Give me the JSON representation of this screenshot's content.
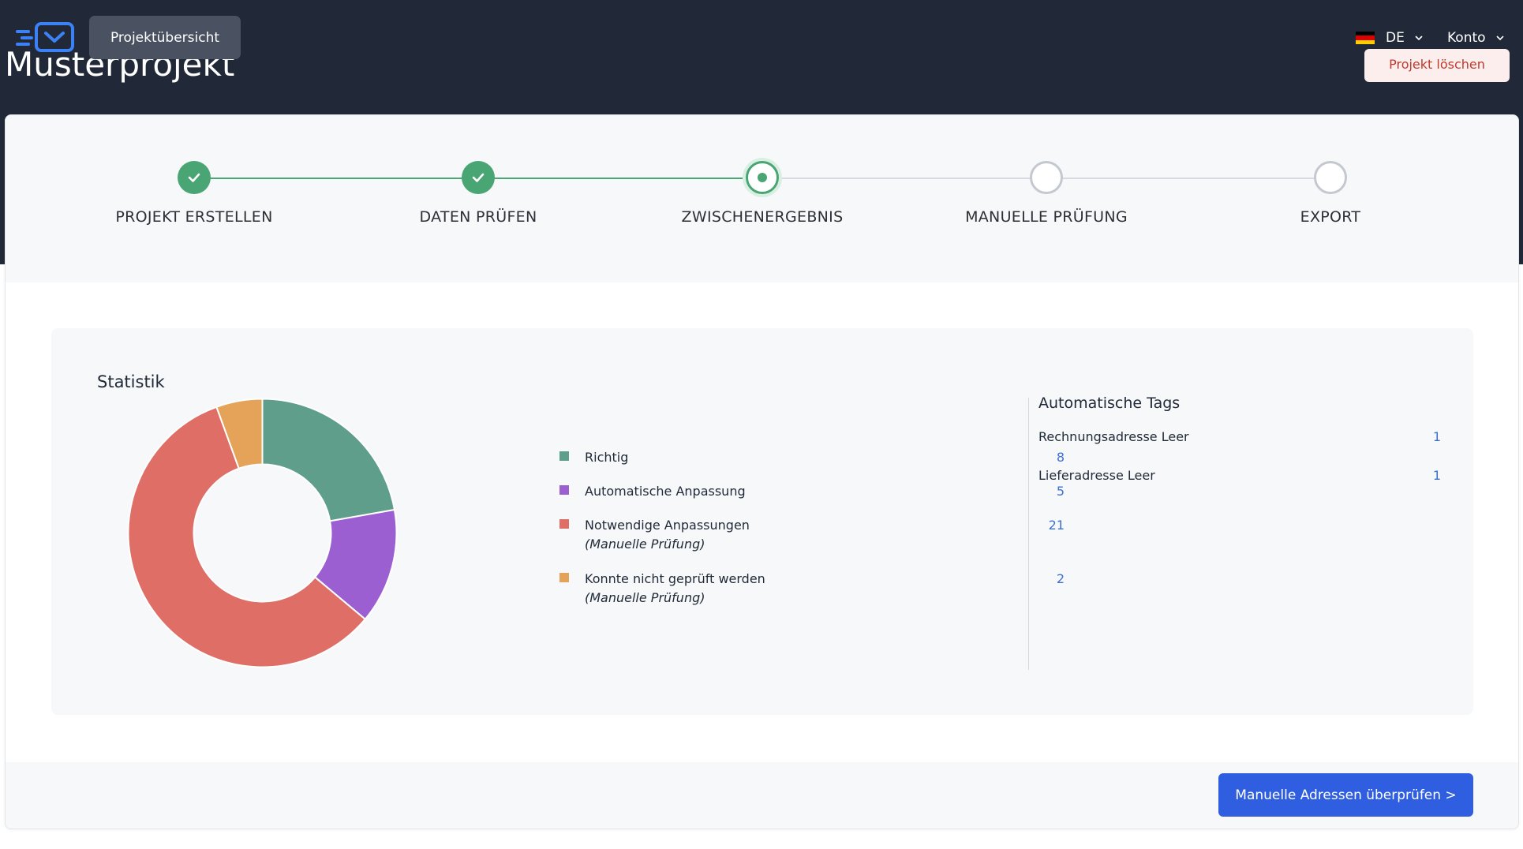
{
  "header": {
    "nav_button": "Projektübersicht",
    "project_title": "Musterprojekt",
    "delete_button": "Projekt löschen",
    "language": "DE",
    "account": "Konto"
  },
  "steps": [
    {
      "label": "PROJEKT ERSTELLEN",
      "state": "done"
    },
    {
      "label": "DATEN PRÜFEN",
      "state": "done"
    },
    {
      "label": "ZWISCHENERGEBNIS",
      "state": "current"
    },
    {
      "label": "MANUELLE PRÜFUNG",
      "state": "todo"
    },
    {
      "label": "EXPORT",
      "state": "todo"
    }
  ],
  "stats": {
    "title": "Statistik",
    "legend": [
      {
        "label": "Richtig",
        "sub": "",
        "value": "8",
        "color": "#5f9e8a"
      },
      {
        "label": "Automatische Anpassung",
        "sub": "",
        "value": "5",
        "color": "#9b5fd1"
      },
      {
        "label": "Notwendige Anpassungen",
        "sub": "(Manuelle Prüfung)",
        "value": "21",
        "color": "#de6e66"
      },
      {
        "label": "Konnte nicht geprüft werden",
        "sub": "(Manuelle Prüfung)",
        "value": "2",
        "color": "#e5a35a"
      }
    ]
  },
  "chart_data": {
    "type": "pie",
    "categories": [
      "Richtig",
      "Automatische Anpassung",
      "Notwendige Anpassungen",
      "Konnte nicht geprüft werden"
    ],
    "values": [
      8,
      5,
      21,
      2
    ],
    "colors": [
      "#5f9e8a",
      "#9b5fd1",
      "#de6e66",
      "#e5a35a"
    ],
    "donut": true
  },
  "tags": {
    "title": "Automatische Tags",
    "items": [
      {
        "label": "Rechnungsadresse Leer",
        "value": "1"
      },
      {
        "label": "Lieferadresse Leer",
        "value": "1"
      }
    ]
  },
  "footer": {
    "primary_button": "Manuelle Adressen überprüfen >"
  },
  "colors": {
    "header_bg": "#212838",
    "accent_green": "#4aa574",
    "primary_blue": "#2f5ee0",
    "value_blue": "#3b6fd1"
  }
}
